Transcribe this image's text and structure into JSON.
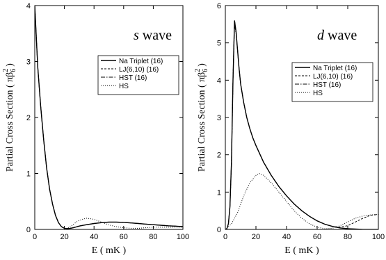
{
  "chart_data": [
    {
      "type": "line",
      "annotation_italic": "s",
      "annotation_rest": " wave",
      "xlabel": "E ( mK )",
      "ylabel_main": "Partial Cross Section ( ",
      "ylabel_symbol": "πβ",
      "ylabel_sub": "6",
      "ylabel_sup": "2",
      "ylabel_close": ")",
      "xlim": [
        0,
        100
      ],
      "ylim": [
        0,
        4
      ],
      "x_ticks": [
        "0",
        "20",
        "40",
        "60",
        "80",
        "100"
      ],
      "y_ticks": [
        "0",
        "1",
        "2",
        "3",
        "4"
      ],
      "legend_position": "right, middle",
      "series": [
        {
          "name": "Na Triplet (16)",
          "style": "solid",
          "x": [
            0,
            2,
            4,
            6,
            8,
            10,
            12,
            14,
            16,
            18,
            20,
            22,
            24,
            26,
            28,
            30,
            35,
            40,
            45,
            50,
            55,
            60,
            65,
            70,
            75,
            80,
            85,
            90,
            95,
            100
          ],
          "y": [
            4.0,
            2.9,
            2.2,
            1.6,
            1.1,
            0.72,
            0.45,
            0.25,
            0.12,
            0.05,
            0.02,
            0.015,
            0.02,
            0.03,
            0.045,
            0.06,
            0.085,
            0.105,
            0.12,
            0.13,
            0.13,
            0.125,
            0.115,
            0.105,
            0.095,
            0.085,
            0.075,
            0.065,
            0.058,
            0.05
          ]
        },
        {
          "name": "LJ(6,10) (16)",
          "style": "dashed",
          "x": [
            0,
            2,
            4,
            6,
            8,
            10,
            12,
            14,
            16,
            18,
            20,
            22,
            24,
            26,
            28,
            30,
            35,
            40,
            45,
            50,
            55,
            60,
            65,
            70,
            75,
            80,
            85,
            90,
            95,
            100
          ],
          "y": [
            4.0,
            2.9,
            2.2,
            1.6,
            1.1,
            0.72,
            0.45,
            0.25,
            0.12,
            0.05,
            0.02,
            0.015,
            0.02,
            0.03,
            0.045,
            0.06,
            0.085,
            0.105,
            0.12,
            0.13,
            0.13,
            0.125,
            0.115,
            0.105,
            0.095,
            0.085,
            0.075,
            0.065,
            0.058,
            0.05
          ]
        },
        {
          "name": "HST (16)",
          "style": "dashdot",
          "x": [
            0,
            2,
            4,
            6,
            8,
            10,
            12,
            14,
            16,
            18,
            20,
            22,
            24,
            26,
            28,
            30,
            35,
            40,
            45,
            50,
            55,
            60,
            65,
            70,
            75,
            80,
            85,
            90,
            95,
            100
          ],
          "y": [
            4.0,
            2.9,
            2.2,
            1.6,
            1.1,
            0.72,
            0.45,
            0.25,
            0.12,
            0.05,
            0.02,
            0.015,
            0.02,
            0.03,
            0.045,
            0.06,
            0.085,
            0.105,
            0.12,
            0.13,
            0.13,
            0.125,
            0.115,
            0.105,
            0.095,
            0.085,
            0.075,
            0.065,
            0.058,
            0.05
          ]
        },
        {
          "name": "HS",
          "style": "dotted",
          "x": [
            0,
            2,
            4,
            6,
            8,
            10,
            12,
            14,
            16,
            18,
            20,
            22,
            24,
            26,
            28,
            30,
            32,
            35,
            38,
            40,
            45,
            50,
            55,
            60,
            65,
            70,
            75,
            80,
            85,
            90,
            95,
            100
          ],
          "y": [
            4.0,
            2.9,
            2.2,
            1.6,
            1.1,
            0.72,
            0.45,
            0.25,
            0.12,
            0.05,
            0.01,
            0.02,
            0.05,
            0.09,
            0.13,
            0.16,
            0.18,
            0.2,
            0.19,
            0.18,
            0.13,
            0.08,
            0.05,
            0.03,
            0.02,
            0.02,
            0.03,
            0.04,
            0.04,
            0.04,
            0.04,
            0.04
          ]
        }
      ]
    },
    {
      "type": "line",
      "annotation_italic": "d",
      "annotation_rest": " wave",
      "xlabel": "E ( mK )",
      "ylabel_main": "Partial Cross Section ( ",
      "ylabel_symbol": "πβ",
      "ylabel_sub": "6",
      "ylabel_sup": "2",
      "ylabel_close": ")",
      "xlim": [
        0,
        100
      ],
      "ylim": [
        0,
        6
      ],
      "x_ticks": [
        "0",
        "20",
        "40",
        "60",
        "80",
        "100"
      ],
      "y_ticks": [
        "0",
        "1",
        "2",
        "3",
        "4",
        "5",
        "6"
      ],
      "legend_position": "top-right",
      "series": [
        {
          "name": "Na Triplet (16)",
          "style": "solid",
          "x": [
            0,
            1,
            2,
            3,
            4,
            5,
            6,
            7,
            8,
            9,
            10,
            12,
            14,
            16,
            18,
            20,
            25,
            30,
            35,
            40,
            45,
            50,
            55,
            60,
            65,
            70,
            75,
            80,
            85,
            90,
            95,
            100
          ],
          "y": [
            0,
            0.02,
            0.15,
            0.6,
            1.8,
            4.0,
            5.6,
            5.3,
            4.8,
            4.3,
            3.9,
            3.4,
            3.0,
            2.7,
            2.45,
            2.25,
            1.8,
            1.45,
            1.15,
            0.9,
            0.68,
            0.5,
            0.35,
            0.23,
            0.14,
            0.08,
            0.04,
            0.02,
            0.01,
            0.0,
            0.0,
            0.0
          ]
        },
        {
          "name": "LJ(6,10) (16)",
          "style": "dashed",
          "x": [
            0,
            1,
            2,
            3,
            4,
            5,
            6,
            7,
            8,
            9,
            10,
            12,
            14,
            16,
            18,
            20,
            25,
            30,
            35,
            40,
            45,
            50,
            55,
            60,
            65,
            70,
            75,
            80,
            85,
            90,
            95,
            100
          ],
          "y": [
            0,
            0.02,
            0.15,
            0.6,
            1.8,
            4.0,
            5.6,
            5.3,
            4.8,
            4.3,
            3.9,
            3.4,
            3.0,
            2.7,
            2.45,
            2.25,
            1.8,
            1.45,
            1.15,
            0.9,
            0.68,
            0.5,
            0.35,
            0.23,
            0.14,
            0.08,
            0.06,
            0.1,
            0.2,
            0.3,
            0.38,
            0.4
          ]
        },
        {
          "name": "HST (16)",
          "style": "dashdot",
          "x": [
            0,
            1,
            2,
            3,
            4,
            5,
            6,
            7,
            8,
            9,
            10,
            12,
            14,
            16,
            18,
            20,
            25,
            30,
            35,
            40,
            45,
            50,
            55,
            60,
            65,
            70,
            75,
            80,
            85,
            90,
            95,
            100
          ],
          "y": [
            0,
            0.02,
            0.15,
            0.6,
            1.8,
            4.0,
            5.5,
            5.25,
            4.8,
            4.3,
            3.9,
            3.4,
            3.0,
            2.7,
            2.45,
            2.25,
            1.8,
            1.45,
            1.15,
            0.9,
            0.68,
            0.5,
            0.35,
            0.23,
            0.14,
            0.08,
            0.04,
            0.02,
            0.01,
            0.0,
            0.0,
            0.0
          ]
        },
        {
          "name": "HS",
          "style": "dotted",
          "x": [
            0,
            4,
            8,
            12,
            16,
            20,
            22,
            25,
            30,
            35,
            40,
            45,
            50,
            55,
            60,
            65,
            70,
            75,
            80,
            85,
            90,
            95,
            100
          ],
          "y": [
            0,
            0.15,
            0.45,
            0.9,
            1.25,
            1.45,
            1.5,
            1.45,
            1.25,
            1.0,
            0.75,
            0.5,
            0.3,
            0.15,
            0.06,
            0.02,
            0.03,
            0.1,
            0.2,
            0.3,
            0.36,
            0.39,
            0.4
          ]
        }
      ]
    }
  ]
}
